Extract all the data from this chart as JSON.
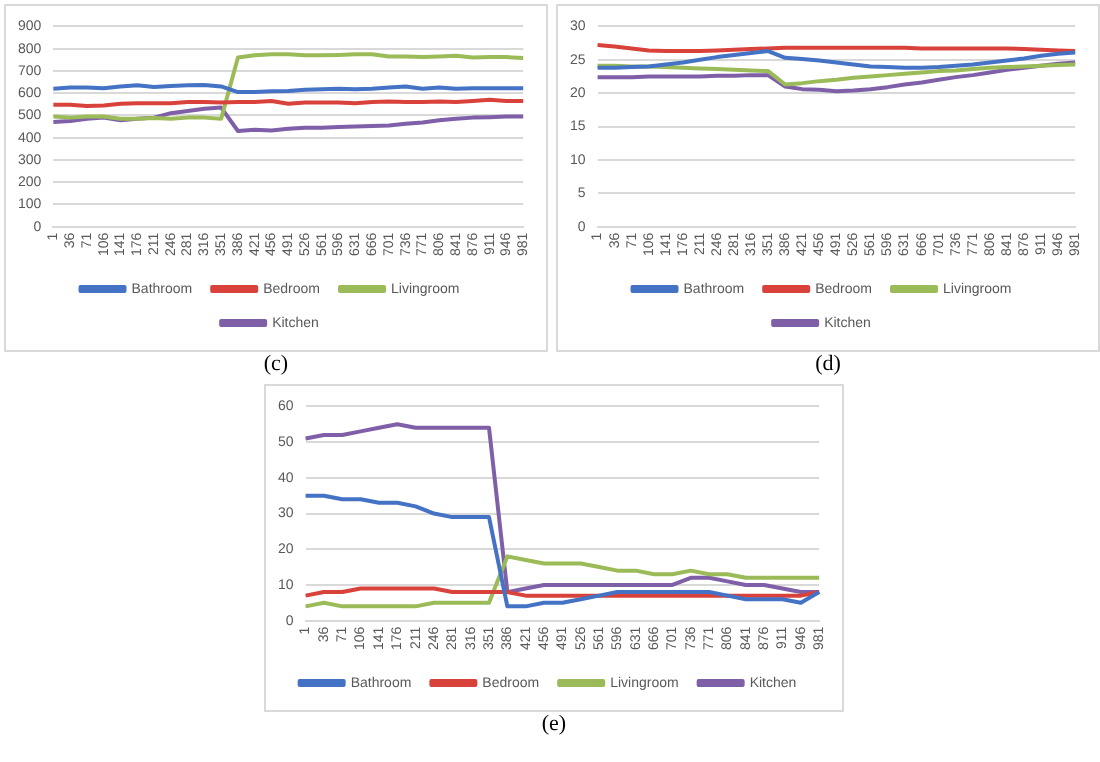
{
  "chart_data": [
    {
      "type": "line",
      "annotations": [
        "(c)"
      ],
      "categories": [
        "1",
        "36",
        "71",
        "106",
        "141",
        "176",
        "211",
        "246",
        "281",
        "316",
        "351",
        "386",
        "421",
        "456",
        "491",
        "526",
        "561",
        "596",
        "631",
        "666",
        "701",
        "736",
        "771",
        "806",
        "841",
        "876",
        "911",
        "946",
        "981"
      ],
      "ylim": [
        0,
        900
      ],
      "yticks": [
        0,
        100,
        200,
        300,
        400,
        500,
        600,
        700,
        800,
        900
      ],
      "grid": "y",
      "legend": "bottom",
      "marker": "none",
      "line_style": "solid",
      "series": [
        {
          "name": "Bathroom",
          "color": "#4472c4",
          "values": [
            620,
            625,
            625,
            622,
            630,
            635,
            628,
            632,
            635,
            637,
            630,
            605,
            605,
            608,
            610,
            615,
            618,
            620,
            618,
            620,
            625,
            630,
            620,
            625,
            620,
            622,
            622,
            622,
            622
          ]
        },
        {
          "name": "Bedroom",
          "color": "#d9413b",
          "values": [
            548,
            548,
            542,
            545,
            552,
            555,
            555,
            555,
            560,
            560,
            558,
            560,
            560,
            565,
            552,
            558,
            558,
            558,
            555,
            560,
            562,
            560,
            560,
            562,
            560,
            565,
            570,
            565,
            565
          ]
        },
        {
          "name": "Livingroom",
          "color": "#9bbb59",
          "values": [
            495,
            490,
            495,
            495,
            485,
            485,
            488,
            485,
            490,
            490,
            485,
            760,
            770,
            775,
            775,
            770,
            770,
            772,
            775,
            775,
            765,
            765,
            762,
            765,
            768,
            760,
            762,
            762,
            758
          ]
        },
        {
          "name": "Kitchen",
          "color": "#7f5fa8",
          "values": [
            470,
            475,
            485,
            490,
            478,
            485,
            490,
            510,
            520,
            530,
            535,
            430,
            435,
            432,
            440,
            445,
            445,
            448,
            450,
            452,
            455,
            462,
            468,
            478,
            485,
            490,
            492,
            495,
            495
          ]
        }
      ]
    },
    {
      "type": "line",
      "annotations": [
        "(d)"
      ],
      "categories": [
        "1",
        "36",
        "71",
        "106",
        "141",
        "176",
        "211",
        "246",
        "281",
        "316",
        "351",
        "386",
        "421",
        "456",
        "491",
        "526",
        "561",
        "596",
        "631",
        "666",
        "701",
        "736",
        "771",
        "806",
        "841",
        "876",
        "911",
        "946",
        "981"
      ],
      "ylim": [
        0,
        30
      ],
      "yticks": [
        0,
        5,
        10,
        15,
        20,
        25,
        30
      ],
      "grid": "y",
      "legend": "bottom",
      "marker": "none",
      "line_style": "solid",
      "series": [
        {
          "name": "Bathroom",
          "color": "#4472c4",
          "values": [
            23.8,
            23.8,
            23.9,
            24.0,
            24.3,
            24.6,
            25.0,
            25.4,
            25.7,
            26.0,
            26.3,
            25.3,
            25.1,
            24.9,
            24.6,
            24.3,
            24.0,
            23.9,
            23.8,
            23.8,
            23.9,
            24.1,
            24.3,
            24.6,
            24.9,
            25.2,
            25.6,
            25.9,
            26.1
          ]
        },
        {
          "name": "Bedroom",
          "color": "#d9413b",
          "values": [
            27.2,
            27.0,
            26.7,
            26.4,
            26.3,
            26.3,
            26.3,
            26.4,
            26.5,
            26.6,
            26.7,
            26.8,
            26.8,
            26.8,
            26.8,
            26.8,
            26.8,
            26.8,
            26.8,
            26.7,
            26.7,
            26.7,
            26.7,
            26.7,
            26.7,
            26.6,
            26.5,
            26.4,
            26.3
          ]
        },
        {
          "name": "Livingroom",
          "color": "#9bbb59",
          "values": [
            24.1,
            24.1,
            24.0,
            24.0,
            23.9,
            23.8,
            23.7,
            23.6,
            23.5,
            23.4,
            23.3,
            21.3,
            21.5,
            21.8,
            22.0,
            22.3,
            22.5,
            22.7,
            22.9,
            23.1,
            23.3,
            23.4,
            23.6,
            23.8,
            23.9,
            24.0,
            24.1,
            24.2,
            24.3
          ]
        },
        {
          "name": "Kitchen",
          "color": "#7f5fa8",
          "values": [
            22.4,
            22.4,
            22.4,
            22.5,
            22.5,
            22.5,
            22.5,
            22.6,
            22.6,
            22.7,
            22.7,
            21.0,
            20.6,
            20.5,
            20.3,
            20.4,
            20.6,
            20.9,
            21.3,
            21.6,
            22.0,
            22.4,
            22.7,
            23.1,
            23.5,
            23.8,
            24.1,
            24.4,
            24.6
          ]
        }
      ]
    },
    {
      "type": "line",
      "annotations": [
        "(e)"
      ],
      "categories": [
        "1",
        "36",
        "71",
        "106",
        "141",
        "176",
        "211",
        "246",
        "281",
        "316",
        "351",
        "386",
        "421",
        "456",
        "491",
        "526",
        "561",
        "596",
        "631",
        "666",
        "701",
        "736",
        "771",
        "806",
        "841",
        "876",
        "911",
        "946",
        "981"
      ],
      "ylim": [
        0,
        60
      ],
      "yticks": [
        0,
        10,
        20,
        30,
        40,
        50,
        60
      ],
      "grid": "y",
      "legend": "bottom",
      "marker": "none",
      "line_style": "solid",
      "series": [
        {
          "name": "Bathroom",
          "color": "#4472c4",
          "values": [
            35,
            35,
            34,
            34,
            33,
            33,
            32,
            30,
            29,
            29,
            29,
            4,
            4,
            5,
            5,
            6,
            7,
            8,
            8,
            8,
            8,
            8,
            8,
            7,
            6,
            6,
            6,
            5,
            8
          ]
        },
        {
          "name": "Bedroom",
          "color": "#d9413b",
          "values": [
            7,
            8,
            8,
            9,
            9,
            9,
            9,
            9,
            8,
            8,
            8,
            8,
            7,
            7,
            7,
            7,
            7,
            7,
            7,
            7,
            7,
            7,
            7,
            7,
            7,
            7,
            7,
            7,
            8
          ]
        },
        {
          "name": "Livingroom",
          "color": "#9bbb59",
          "values": [
            4,
            5,
            4,
            4,
            4,
            4,
            4,
            5,
            5,
            5,
            5,
            18,
            17,
            16,
            16,
            16,
            15,
            14,
            14,
            13,
            13,
            14,
            13,
            13,
            12,
            12,
            12,
            12,
            12
          ]
        },
        {
          "name": "Kitchen",
          "color": "#7f5fa8",
          "values": [
            51,
            52,
            52,
            53,
            54,
            55,
            54,
            54,
            54,
            54,
            54,
            8,
            9,
            10,
            10,
            10,
            10,
            10,
            10,
            10,
            10,
            12,
            12,
            11,
            10,
            10,
            9,
            8,
            8
          ]
        }
      ]
    }
  ]
}
